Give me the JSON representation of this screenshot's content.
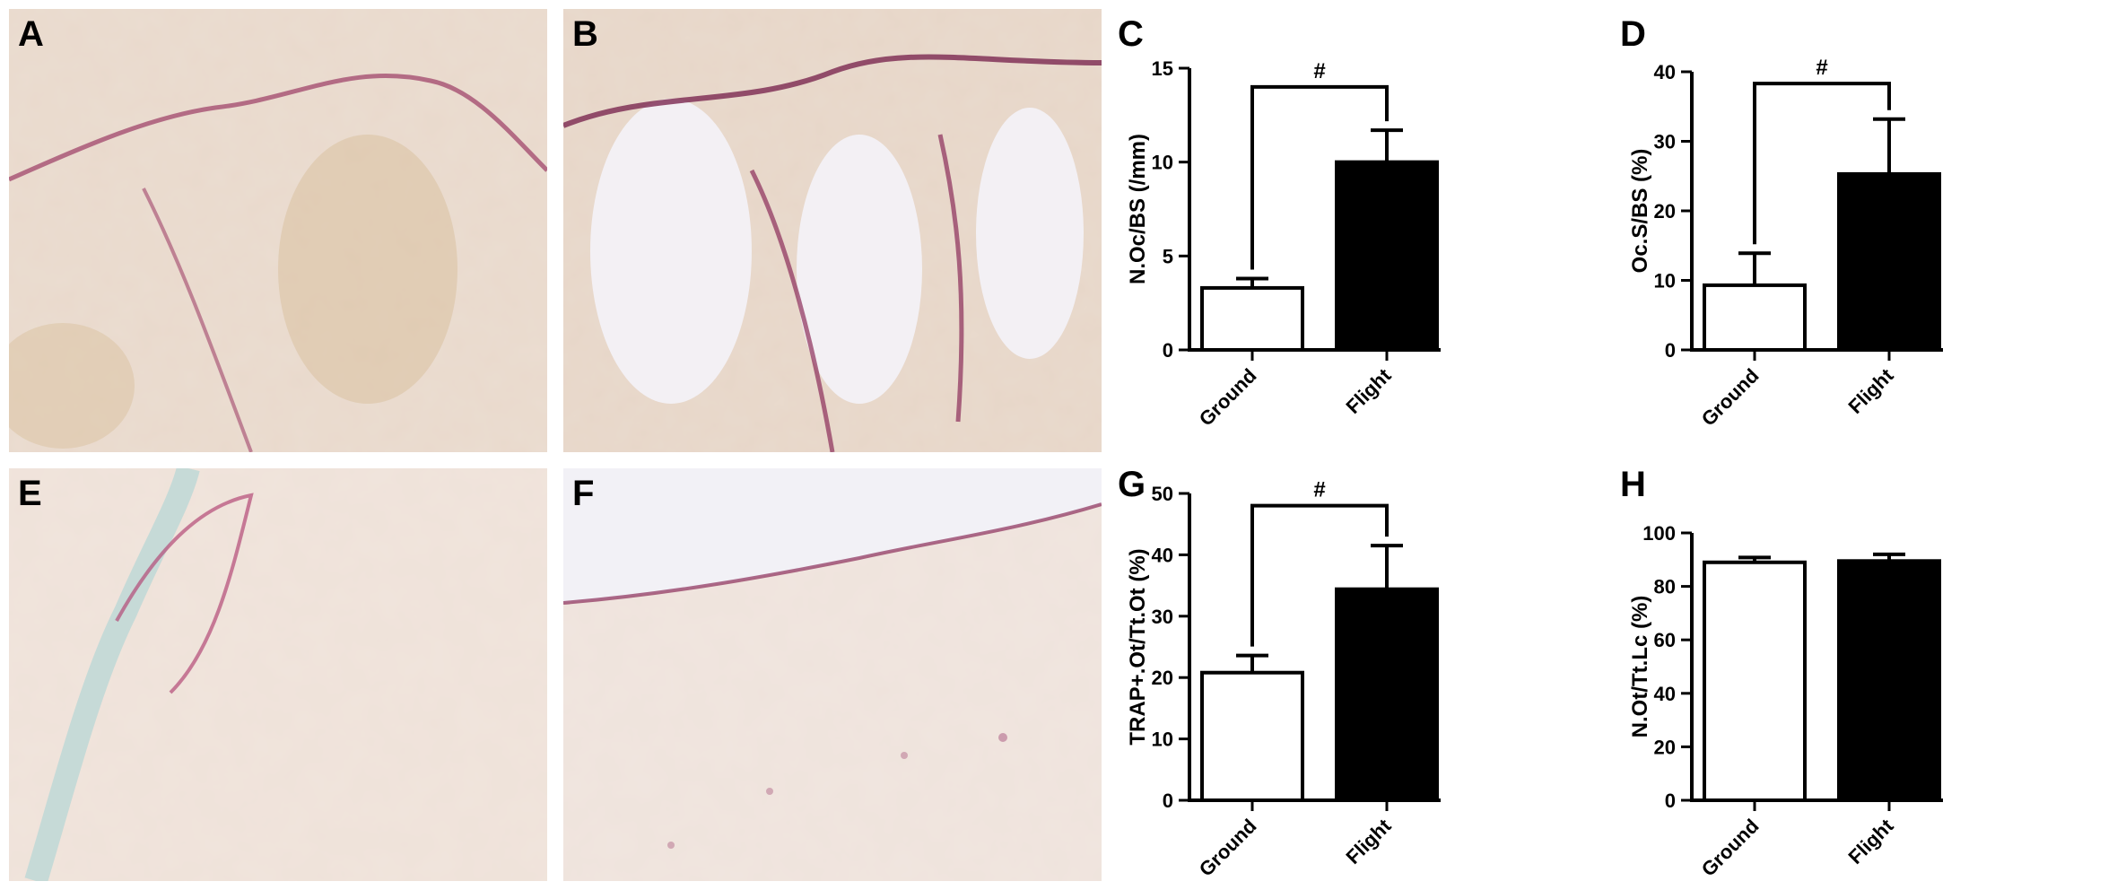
{
  "photos": [
    {
      "id": "A",
      "label": "A"
    },
    {
      "id": "B",
      "label": "B"
    },
    {
      "id": "E",
      "label": "E"
    },
    {
      "id": "F",
      "label": "F"
    }
  ],
  "chart_data": [
    {
      "panel": "C",
      "type": "bar",
      "categories": [
        "Ground",
        "Flight"
      ],
      "values": [
        3.3,
        10.0
      ],
      "errors": [
        0.5,
        1.7
      ],
      "colors": [
        "#ffffff",
        "#000000"
      ],
      "ylabel": "N.Oc/BS (/mm)",
      "ylim": [
        0,
        15
      ],
      "yticks": [
        0,
        5,
        10,
        15
      ],
      "significance": {
        "label": "#",
        "y": 14.0
      }
    },
    {
      "panel": "D",
      "type": "bar",
      "categories": [
        "Ground",
        "Flight"
      ],
      "values": [
        9.3,
        25.3
      ],
      "errors": [
        4.6,
        7.9
      ],
      "colors": [
        "#ffffff",
        "#000000"
      ],
      "ylabel": "Oc.S/BS (%)",
      "ylim": [
        0,
        40
      ],
      "yticks": [
        0,
        10,
        20,
        30,
        40
      ],
      "significance": {
        "label": "#",
        "y": 38.3
      }
    },
    {
      "panel": "G",
      "type": "bar",
      "categories": [
        "Ground",
        "Flight"
      ],
      "values": [
        20.8,
        34.4
      ],
      "errors": [
        2.8,
        7.1
      ],
      "colors": [
        "#ffffff",
        "#000000"
      ],
      "ylabel": "TRAP+.Ot/Tt.Ot (%)",
      "ylim": [
        0,
        50
      ],
      "yticks": [
        0,
        10,
        20,
        30,
        40,
        50
      ],
      "significance": {
        "label": "#",
        "y": 48.0
      }
    },
    {
      "panel": "H",
      "type": "bar",
      "categories": [
        "Ground",
        "Flight"
      ],
      "values": [
        89.0,
        89.5
      ],
      "errors": [
        1.8,
        2.5
      ],
      "colors": [
        "#ffffff",
        "#000000"
      ],
      "ylabel": "N.Ot/Tt.Lc (%)",
      "ylim": [
        0,
        100
      ],
      "yticks": [
        0,
        20,
        40,
        60,
        80,
        100
      ],
      "significance": null
    }
  ]
}
